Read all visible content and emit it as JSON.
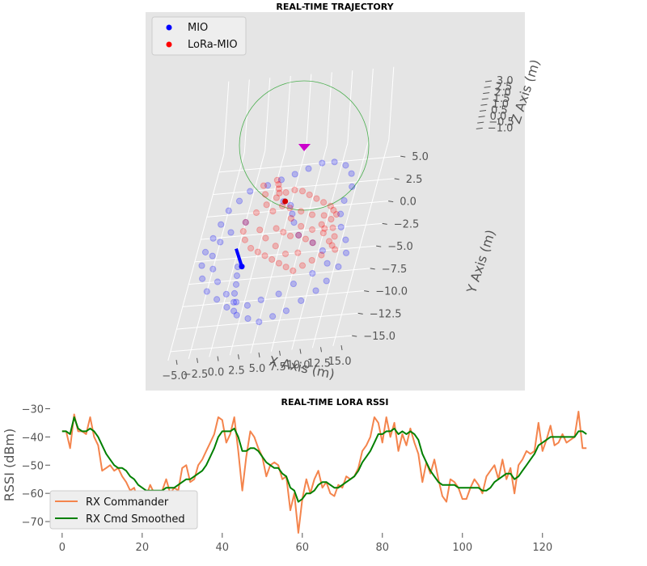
{
  "chart_data": [
    {
      "type": "scatter",
      "projection": "3d",
      "title": "REAL-TIME TRAJECTORY",
      "xlabel": "X Axis (m)",
      "ylabel": "Y Axis (m)",
      "zlabel": "Z Axis (m)",
      "x_ticks": [
        "−5.0",
        "−2.5",
        "0.0",
        "2.5",
        "5.0",
        "7.5",
        "10.0",
        "12.5",
        "15.0"
      ],
      "y_ticks": [
        "5.0",
        "2.5",
        "0.0",
        "−2.5",
        "−5.0",
        "−7.5",
        "−10.0",
        "−12.5",
        "−15.0"
      ],
      "z_ticks": [
        "3.0",
        "2.5",
        "2.0",
        "1.5",
        "1.0",
        "0.5",
        "0.0",
        "−0.5",
        "−1.0"
      ],
      "xlim": [
        -6,
        16
      ],
      "ylim": [
        -16,
        7
      ],
      "legend": {
        "position": "top-left",
        "entries": [
          "MIO",
          "LoRa-MIO"
        ]
      },
      "colors": {
        "MIO": "#0000ff",
        "LoRa-MIO": "#ff0000",
        "circle": "#4caf50",
        "marker": "#cc00cc"
      },
      "series": [
        {
          "name": "MIO",
          "points": [
            [
              0.5,
              3.0
            ],
            [
              2.0,
              3.5
            ],
            [
              3.5,
              4.0
            ],
            [
              5.0,
              4.5
            ],
            [
              6.5,
              5.0
            ],
            [
              8.0,
              5.0
            ],
            [
              9.5,
              4.5
            ],
            [
              10.5,
              3.5
            ],
            [
              11.0,
              2.0
            ],
            [
              10.5,
              0.5
            ],
            [
              10.5,
              -1.0
            ],
            [
              11.0,
              -2.5
            ],
            [
              12.0,
              -4.0
            ],
            [
              12.5,
              -5.5
            ],
            [
              12.0,
              -7.0
            ],
            [
              11.0,
              -8.5
            ],
            [
              10.0,
              -9.5
            ],
            [
              8.5,
              -10.5
            ],
            [
              7.0,
              -11.5
            ],
            [
              5.5,
              -12.0
            ],
            [
              4.0,
              -12.5
            ],
            [
              2.5,
              -12.0
            ],
            [
              1.0,
              -11.5
            ],
            [
              -0.5,
              -10.5
            ],
            [
              -2.0,
              -9.5
            ],
            [
              -3.5,
              -8.5
            ],
            [
              -4.5,
              -7.0
            ],
            [
              -5.0,
              -5.5
            ],
            [
              -5.0,
              -4.0
            ],
            [
              -4.5,
              -2.5
            ],
            [
              -4.0,
              -1.0
            ],
            [
              -3.5,
              0.5
            ],
            [
              -2.5,
              1.5
            ],
            [
              -1.5,
              2.5
            ],
            [
              3.0,
              1.0
            ],
            [
              4.0,
              0.5
            ],
            [
              4.5,
              -0.5
            ],
            [
              5.0,
              -1.5
            ],
            [
              6.0,
              -3.0
            ],
            [
              8.0,
              -4.0
            ],
            [
              9.5,
              -5.0
            ],
            [
              10.5,
              -6.5
            ],
            [
              9.0,
              -7.5
            ],
            [
              7.0,
              -8.5
            ],
            [
              5.5,
              -9.5
            ],
            [
              3.5,
              -10.0
            ],
            [
              2.0,
              -10.5
            ],
            [
              0.5,
              -10.0
            ],
            [
              -1.0,
              -9.0
            ],
            [
              -2.5,
              -7.5
            ],
            [
              -3.5,
              -6.0
            ],
            [
              -4.0,
              -4.5
            ],
            [
              -3.5,
              -3.0
            ],
            [
              -2.5,
              -2.0
            ],
            [
              -1.0,
              -1.0
            ],
            [
              -0.5,
              -6.0
            ],
            [
              -0.3,
              -7.0
            ],
            [
              -0.1,
              -8.0
            ],
            [
              0.0,
              -9.0
            ],
            [
              0.2,
              -10.0
            ],
            [
              0.5,
              -11.0
            ]
          ]
        },
        {
          "name": "LoRa-MIO",
          "points": [
            [
              2.0,
              0.0
            ],
            [
              3.0,
              0.5
            ],
            [
              4.0,
              0.2
            ],
            [
              5.5,
              -0.3
            ],
            [
              7.0,
              -0.8
            ],
            [
              8.5,
              -1.0
            ],
            [
              9.5,
              -1.5
            ],
            [
              10.0,
              -2.5
            ],
            [
              10.5,
              -3.5
            ],
            [
              10.5,
              -4.5
            ],
            [
              9.5,
              -5.5
            ],
            [
              8.5,
              -6.0
            ],
            [
              7.5,
              -6.5
            ],
            [
              6.5,
              -7.0
            ],
            [
              5.5,
              -6.5
            ],
            [
              4.5,
              -6.0
            ],
            [
              3.5,
              -5.5
            ],
            [
              2.5,
              -5.0
            ],
            [
              1.5,
              -4.5
            ],
            [
              0.5,
              -4.0
            ],
            [
              -0.5,
              -3.0
            ],
            [
              -1.0,
              -2.0
            ],
            [
              -1.0,
              -1.0
            ],
            [
              0.0,
              0.0
            ],
            [
              1.0,
              0.8
            ],
            [
              2.0,
              1.5
            ],
            [
              3.0,
              2.0
            ],
            [
              4.0,
              2.2
            ],
            [
              5.0,
              2.0
            ],
            [
              6.0,
              1.5
            ],
            [
              7.0,
              1.0
            ],
            [
              8.0,
              0.5
            ],
            [
              9.0,
              0.0
            ],
            [
              9.5,
              -0.5
            ],
            [
              10.0,
              -1.0
            ],
            [
              6.0,
              -3.0
            ],
            [
              7.0,
              -3.5
            ],
            [
              8.0,
              -4.0
            ],
            [
              3.0,
              -2.0
            ],
            [
              4.0,
              -2.5
            ],
            [
              5.0,
              -3.0
            ],
            [
              1.0,
              -2.0
            ],
            [
              2.0,
              -3.0
            ],
            [
              3.5,
              -4.0
            ],
            [
              6.5,
              -5.0
            ],
            [
              9.0,
              -3.0
            ],
            [
              10.0,
              -4.0
            ],
            [
              11.0,
              -5.0
            ],
            [
              1.5,
              3.5
            ],
            [
              1.8,
              3.0
            ],
            [
              2.0,
              2.5
            ],
            [
              2.2,
              2.0
            ],
            [
              8.5,
              -2.0
            ],
            [
              9.0,
              -2.5
            ],
            [
              0.0,
              3.0
            ],
            [
              0.5,
              2.0
            ],
            [
              4.5,
              -1.0
            ],
            [
              6.0,
              -2.0
            ],
            [
              7.5,
              -2.5
            ],
            [
              5.0,
              -5.0
            ]
          ]
        }
      ]
    },
    {
      "type": "line",
      "title": "REAL-TIME LORA RSSI",
      "xlabel": "",
      "ylabel": "RSSI (dBm)",
      "xlim": [
        -3,
        135
      ],
      "ylim": [
        -74,
        -29
      ],
      "x_ticks": [
        0,
        20,
        40,
        60,
        80,
        100,
        120
      ],
      "y_ticks": [
        -30,
        -40,
        -50,
        -60,
        -70
      ],
      "grid": false,
      "legend": {
        "position": "bottom-left",
        "entries": [
          "RX Commander",
          "RX Cmd Smoothed"
        ]
      },
      "colors": {
        "RX Commander": "#f4844c",
        "RX Cmd Smoothed": "#008000"
      },
      "series": [
        {
          "name": "RX Commander",
          "values": [
            -38,
            -38,
            -44,
            -32,
            -38,
            -38,
            -39,
            -33,
            -40,
            -43,
            -52,
            -51,
            -50,
            -52,
            -51,
            -54,
            -56,
            -59,
            -58,
            -63,
            -60,
            -61,
            -57,
            -60,
            -61,
            -59,
            -55,
            -60,
            -58,
            -59,
            -51,
            -50,
            -56,
            -55,
            -50,
            -48,
            -45,
            -42,
            -39,
            -33,
            -34,
            -42,
            -39,
            -33,
            -45,
            -59,
            -47,
            -38,
            -40,
            -44,
            -47,
            -54,
            -50,
            -49,
            -50,
            -55,
            -54,
            -66,
            -60,
            -74,
            -62,
            -55,
            -60,
            -55,
            -52,
            -58,
            -56,
            -60,
            -61,
            -57,
            -58,
            -54,
            -55,
            -54,
            -51,
            -45,
            -43,
            -40,
            -33,
            -35,
            -42,
            -33,
            -40,
            -35,
            -45,
            -39,
            -43,
            -37,
            -42,
            -46,
            -56,
            -49,
            -53,
            -48,
            -55,
            -61,
            -63,
            -55,
            -56,
            -58,
            -62,
            -62,
            -58,
            -55,
            -57,
            -60,
            -54,
            -52,
            -50,
            -55,
            -48,
            -55,
            -51,
            -60,
            -50,
            -48,
            -45,
            -46,
            -45,
            -35,
            -45,
            -41,
            -36,
            -43,
            -42,
            -39,
            -42,
            -41,
            -40,
            -31,
            -44,
            -44
          ]
        },
        {
          "name": "RX Cmd Smoothed",
          "values": [
            -38,
            -38,
            -39,
            -33,
            -37,
            -38,
            -38,
            -37,
            -38,
            -40,
            -43,
            -46,
            -48,
            -50,
            -51,
            -51,
            -52,
            -54,
            -55,
            -57,
            -58,
            -59,
            -59,
            -59,
            -59,
            -59,
            -58,
            -58,
            -58,
            -57,
            -56,
            -55,
            -55,
            -54,
            -53,
            -52,
            -50,
            -47,
            -44,
            -40,
            -38,
            -38,
            -38,
            -37,
            -40,
            -45,
            -45,
            -44,
            -44,
            -45,
            -47,
            -49,
            -50,
            -51,
            -51,
            -53,
            -54,
            -58,
            -59,
            -63,
            -62,
            -60,
            -60,
            -59,
            -57,
            -56,
            -56,
            -57,
            -58,
            -58,
            -57,
            -56,
            -55,
            -54,
            -52,
            -49,
            -47,
            -45,
            -42,
            -39,
            -39,
            -38,
            -38,
            -37,
            -39,
            -38,
            -39,
            -38,
            -39,
            -41,
            -46,
            -49,
            -52,
            -54,
            -56,
            -57,
            -57,
            -57,
            -57,
            -58,
            -58,
            -58,
            -58,
            -58,
            -58,
            -59,
            -59,
            -58,
            -56,
            -55,
            -54,
            -53,
            -53,
            -55,
            -54,
            -52,
            -50,
            -48,
            -46,
            -43,
            -42,
            -41,
            -40,
            -40,
            -40,
            -40,
            -40,
            -40,
            -40,
            -38,
            -38,
            -39
          ]
        }
      ]
    }
  ]
}
